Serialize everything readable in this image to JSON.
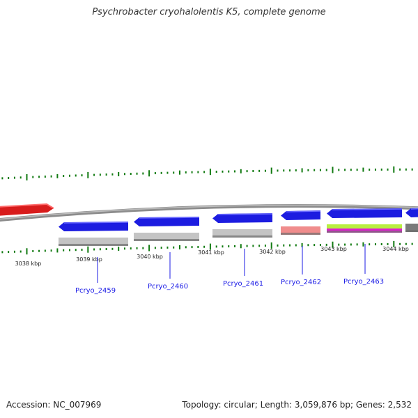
{
  "title": "Psychrobacter cryohalolentis K5, complete genome",
  "footer": {
    "accession": "Accession: NC_007969",
    "stats": "Topology: circular; Length: 3,059,876 bp; Genes: 2,532"
  },
  "colors": {
    "tick": "#117a11",
    "backbone": "#8c8c8c",
    "forward_gene": "#d81c1c",
    "reverse_gene": "#1c1ce0",
    "label": "#1a1ae6",
    "cds_grey": "#c4c4c4",
    "cds_pink": "#f08c8c",
    "cds_lime": "#b8f040",
    "cds_magenta": "#e020d0",
    "cds_dark": "#7a7a7a"
  },
  "ticks": [
    {
      "kbp": 3038,
      "label": "3038 kbp"
    },
    {
      "kbp": 3039,
      "label": "3039 kbp"
    },
    {
      "kbp": 3040,
      "label": "3040 kbp"
    },
    {
      "kbp": 3041,
      "label": "3041 kbp"
    },
    {
      "kbp": 3042,
      "label": "3042 kbp"
    },
    {
      "kbp": 3043,
      "label": "3043 kbp"
    },
    {
      "kbp": 3044,
      "label": "3044 kbp"
    }
  ],
  "genes": [
    {
      "id": "forward-gene-red",
      "strand": "+",
      "color_key": "forward_gene",
      "label": ""
    },
    {
      "id": "Pcryo_2459",
      "strand": "-",
      "color_key": "reverse_gene",
      "label": "Pcryo_2459",
      "cds_color_key": "cds_grey"
    },
    {
      "id": "Pcryo_2460",
      "strand": "-",
      "color_key": "reverse_gene",
      "label": "Pcryo_2460",
      "cds_color_key": "cds_grey"
    },
    {
      "id": "Pcryo_2461",
      "strand": "-",
      "color_key": "reverse_gene",
      "label": "Pcryo_2461",
      "cds_color_key": "cds_grey"
    },
    {
      "id": "Pcryo_2462",
      "strand": "-",
      "color_key": "reverse_gene",
      "label": "Pcryo_2462",
      "cds_color_key": "cds_pink"
    },
    {
      "id": "Pcryo_2463",
      "strand": "-",
      "color_key": "reverse_gene",
      "label": "Pcryo_2463",
      "cds_color_key": "cds_lime_magenta"
    },
    {
      "id": "gene-partial-right",
      "strand": "-",
      "color_key": "reverse_gene",
      "label": "",
      "cds_color_key": "cds_dark"
    }
  ]
}
